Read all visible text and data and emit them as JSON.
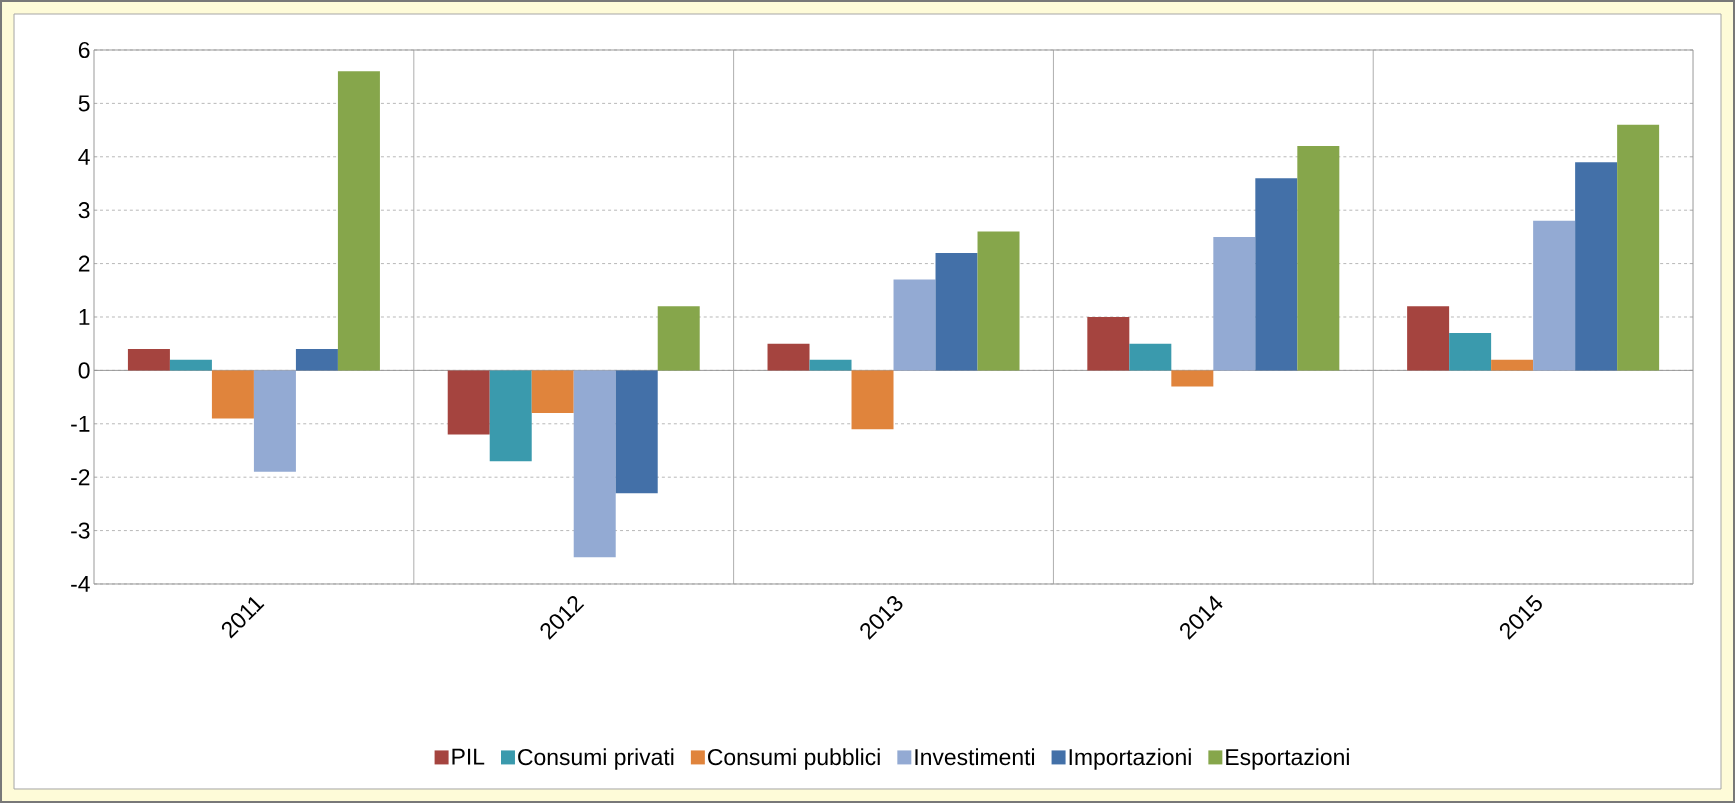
{
  "chart_data": {
    "type": "bar",
    "categories": [
      "2011",
      "2012",
      "2013",
      "2014",
      "2015"
    ],
    "series": [
      {
        "name": "PIL",
        "color": "#a5443f",
        "values": [
          0.4,
          -1.2,
          0.5,
          1.0,
          1.2
        ]
      },
      {
        "name": "Consumi privati",
        "color": "#3a9aad",
        "values": [
          0.2,
          -1.7,
          0.2,
          0.5,
          0.7
        ]
      },
      {
        "name": "Consumi pubblici",
        "color": "#e0843c",
        "values": [
          -0.9,
          -0.8,
          -1.1,
          -0.3,
          0.2
        ]
      },
      {
        "name": "Investimenti",
        "color": "#93aad3",
        "values": [
          -1.9,
          -3.5,
          1.7,
          2.5,
          2.8
        ]
      },
      {
        "name": "Importazioni",
        "color": "#4370a8",
        "values": [
          0.4,
          -2.3,
          2.2,
          3.6,
          3.9
        ]
      },
      {
        "name": "Esportazioni",
        "color": "#86a64b",
        "values": [
          5.6,
          1.2,
          2.6,
          4.2,
          4.6
        ]
      }
    ],
    "ylim": [
      -4,
      6
    ],
    "yticks": [
      -4,
      -3,
      -2,
      -1,
      0,
      1,
      2,
      3,
      4,
      5,
      6
    ],
    "grid": true,
    "legend": "bottom"
  }
}
